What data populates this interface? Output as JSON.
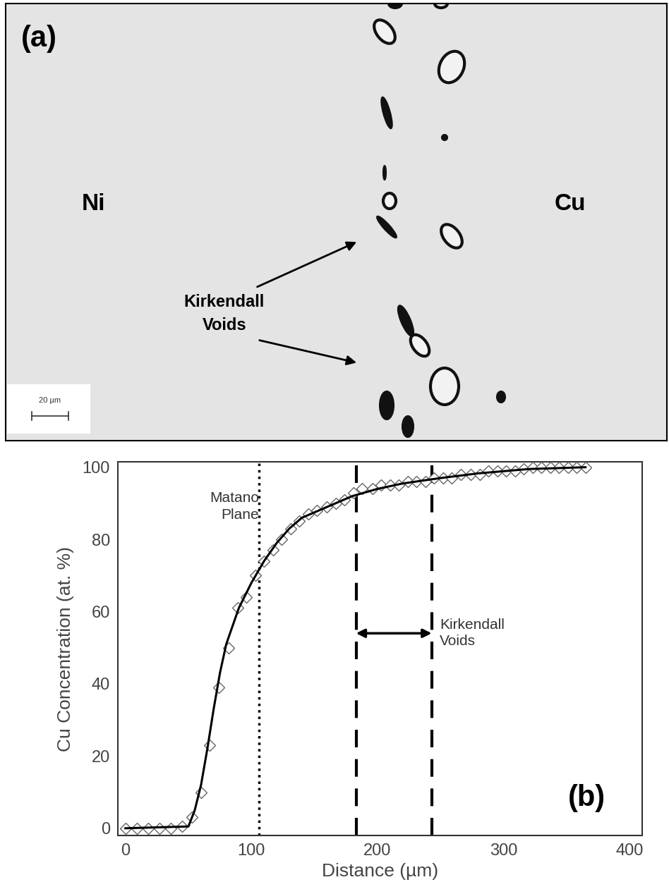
{
  "micrograph": {
    "panel_label": "(a)",
    "left_label": "Ni",
    "right_label": "Cu",
    "annotation": "Kirkendall\nVoids",
    "scale_bar": "20 µm"
  },
  "chart_data": {
    "type": "scatter",
    "panel_label": "(b)",
    "x_label": "Distance (µm)",
    "y_label": "Cu Concentration (at. %)",
    "xlim": [
      -6,
      410
    ],
    "ylim": [
      -2,
      101.5
    ],
    "xticks": [
      0,
      100,
      200,
      300,
      400
    ],
    "yticks": [
      0,
      20,
      40,
      60,
      80,
      100
    ],
    "grid": false,
    "series": [
      {
        "type": "scatter",
        "marker": "diamond",
        "color": "#000000",
        "x": [
          0,
          9,
          18,
          27,
          36,
          45,
          53,
          60,
          67,
          74,
          82,
          89,
          96,
          103,
          110,
          117,
          124,
          131,
          138,
          145,
          152,
          160,
          167,
          174,
          181,
          188,
          196,
          203,
          210,
          217,
          224,
          231,
          238,
          245,
          252,
          259,
          266,
          274,
          281,
          288,
          295,
          302,
          309,
          316,
          323,
          330,
          337,
          344,
          351,
          358,
          365
        ],
        "values": [
          0,
          0,
          0,
          0,
          0,
          0.5,
          3,
          10,
          23,
          39,
          50,
          61,
          64,
          70,
          74,
          77,
          80,
          83,
          85,
          87,
          88,
          89,
          90,
          91,
          93,
          94,
          94,
          95,
          95,
          95,
          96,
          96,
          96,
          97,
          97,
          97,
          98,
          98,
          98,
          99,
          99,
          99,
          99,
          99.5,
          100,
          100,
          100,
          100,
          100,
          100,
          100
        ]
      },
      {
        "type": "line",
        "line_style": "solid",
        "color": "#000000",
        "x": [
          0,
          50,
          55,
          60,
          65,
          70,
          75,
          80,
          90,
          100,
          110,
          120,
          130,
          140,
          160,
          180,
          200,
          220,
          250,
          280,
          320,
          365
        ],
        "values": [
          0,
          0.5,
          5,
          12,
          22,
          33,
          43,
          51,
          61,
          68,
          74,
          79,
          83,
          86,
          89,
          92,
          94,
          95.5,
          97,
          98.3,
          99.5,
          100
        ]
      }
    ],
    "reference_lines": [
      {
        "x": 106,
        "line_style": "dotted",
        "text": "Matano\nPlane"
      },
      {
        "x": 183,
        "line_style": "dashed"
      },
      {
        "x": 243,
        "line_style": "dashed"
      }
    ],
    "range_annotation": {
      "text": "Kirkendall\nVoids",
      "x_from": 183,
      "x_to": 243,
      "y": 54
    }
  }
}
